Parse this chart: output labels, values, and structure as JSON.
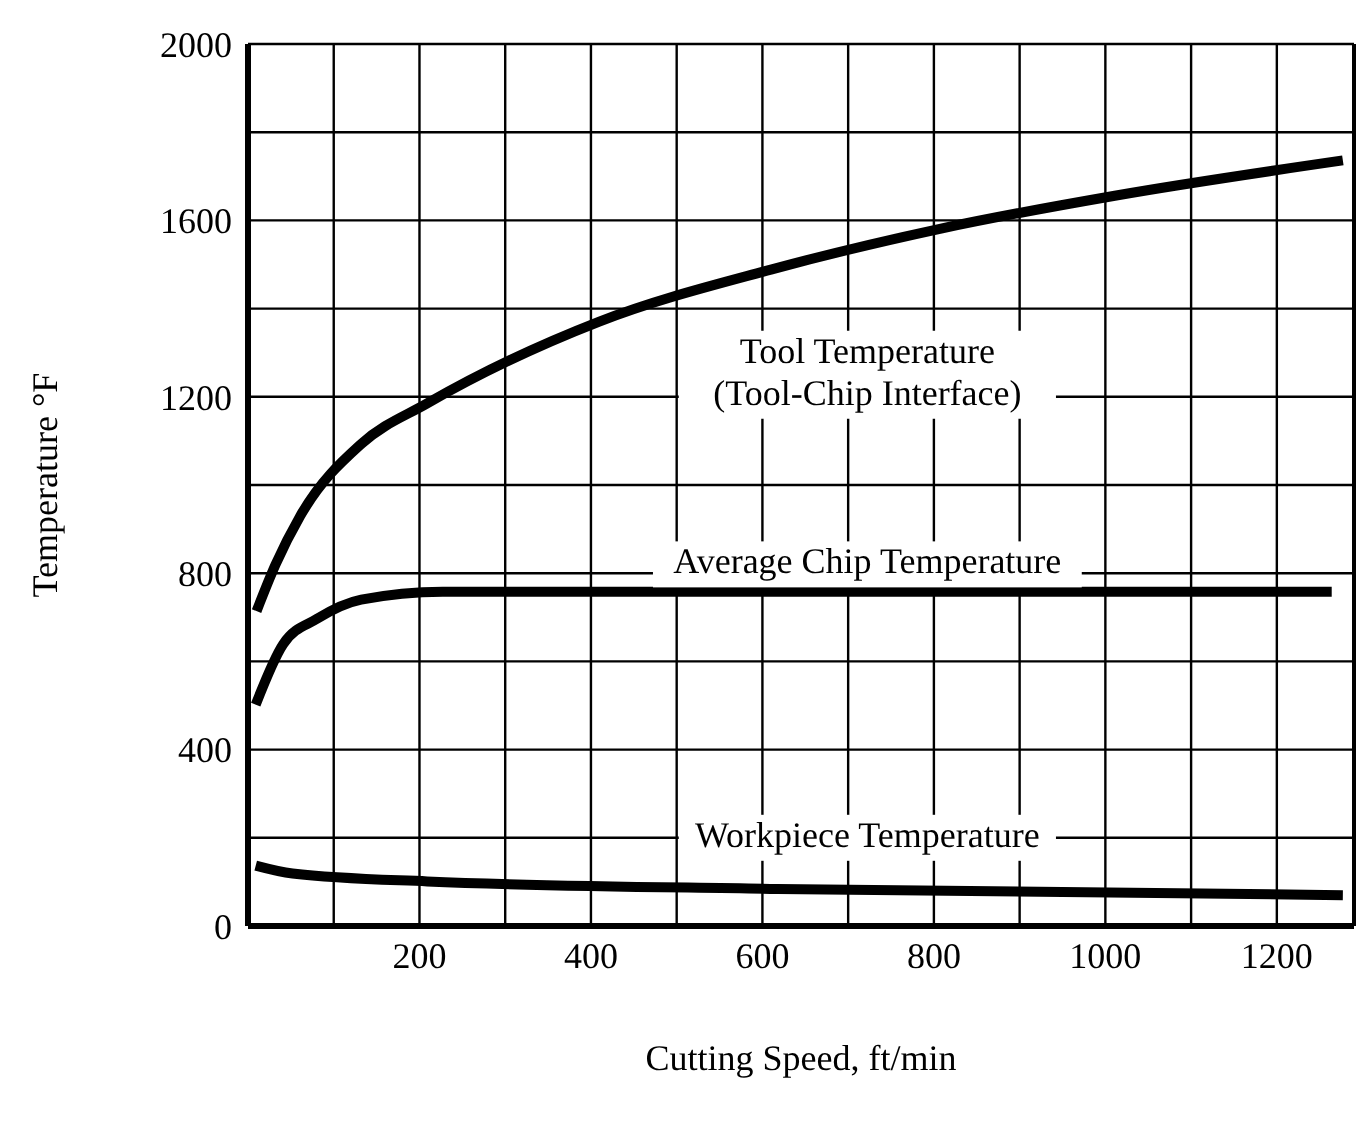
{
  "chart_data": {
    "type": "line",
    "xlabel": "Cutting Speed, ft/min",
    "ylabel": "Temperature °F",
    "xlim": [
      0,
      1290
    ],
    "xticks": [
      {
        "value": 0,
        "label": null
      },
      {
        "value": 100,
        "label": null
      },
      200,
      {
        "value": 300,
        "label": null
      },
      400,
      {
        "value": 500,
        "label": null
      },
      600,
      {
        "value": 700,
        "label": null
      },
      800,
      {
        "value": 900,
        "label": null
      },
      1000,
      {
        "value": 1100,
        "label": null
      },
      1200
    ],
    "ylim": [
      0,
      2000
    ],
    "yticks": [
      0,
      {
        "value": 200,
        "label": null
      },
      400,
      {
        "value": 600,
        "label": null
      },
      800,
      {
        "value": 1000,
        "label": null
      },
      1200,
      {
        "value": 1400,
        "label": null
      },
      1600,
      {
        "value": 1800,
        "label": null
      },
      2000
    ],
    "grid": true,
    "marker": "none",
    "line_style": "solid",
    "series": [
      {
        "color": "#000000",
        "x": [
          10,
          32,
          61,
          132,
          209,
          409,
          611,
          807,
          1011,
          1277
        ],
        "values": [
          714,
          819,
          930,
          1093,
          1185,
          1370,
          1489,
          1581,
          1656,
          1736
        ]
      },
      {
        "color": "#000000",
        "x": [
          9,
          41,
          80,
          132,
          227,
          600,
          1264
        ],
        "values": [
          502,
          639,
          696,
          740,
          758,
          758,
          758
        ]
      },
      {
        "color": "#000000",
        "x": [
          9,
          52,
          209,
          618,
          1277
        ],
        "values": [
          137,
          119,
          101,
          84,
          70
        ]
      }
    ],
    "annotations": [
      "Tool Temperature\n(Tool-Chip Interface)",
      "Average Chip Temperature",
      "Workpiece Temperature"
    ]
  }
}
